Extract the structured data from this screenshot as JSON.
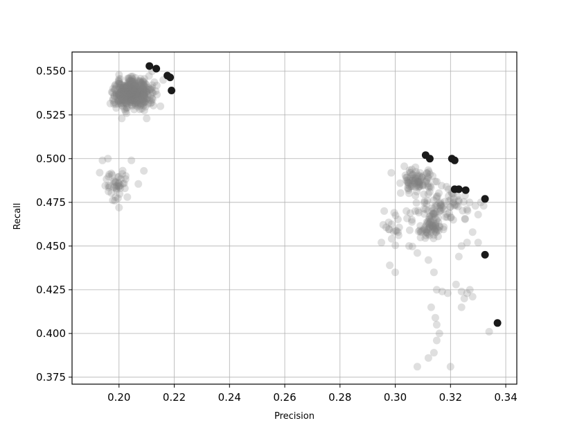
{
  "chart_data": {
    "type": "scatter",
    "title": "",
    "xlabel": "Precision",
    "ylabel": "Recall",
    "xlim": [
      0.183,
      0.344
    ],
    "ylim": [
      0.371,
      0.561
    ],
    "xticks": [
      "0.20",
      "0.22",
      "0.24",
      "0.26",
      "0.28",
      "0.30",
      "0.32",
      "0.34"
    ],
    "yticks": [
      "0.375",
      "0.400",
      "0.425",
      "0.450",
      "0.475",
      "0.500",
      "0.525",
      "0.550"
    ],
    "grid": true,
    "series": [
      {
        "role": "all-points",
        "color": "#808080",
        "opacity": 0.25,
        "clusters": [
          {
            "center": [
              0.205,
              0.5375
            ],
            "spread": [
              0.0045,
              0.0055
            ],
            "n": 520
          },
          {
            "center": [
              0.1995,
              0.485
            ],
            "spread": [
              0.003,
              0.006
            ],
            "n": 40
          },
          {
            "center": [
              0.308,
              0.487
            ],
            "spread": [
              0.0045,
              0.005
            ],
            "n": 90
          },
          {
            "center": [
              0.314,
              0.47
            ],
            "spread": [
              0.004,
              0.007
            ],
            "n": 60
          },
          {
            "center": [
              0.313,
              0.46
            ],
            "spread": [
              0.003,
              0.004
            ],
            "n": 50
          },
          {
            "center": [
              0.322,
              0.475
            ],
            "spread": [
              0.004,
              0.006
            ],
            "n": 30
          },
          {
            "center": [
              0.302,
              0.46
            ],
            "spread": [
              0.004,
              0.008
            ],
            "n": 25
          }
        ],
        "points": [
          [
            0.193,
            0.492
          ],
          [
            0.194,
            0.499
          ],
          [
            0.196,
            0.5
          ],
          [
            0.195,
            0.4845
          ],
          [
            0.2045,
            0.499
          ],
          [
            0.207,
            0.4855
          ],
          [
            0.209,
            0.493
          ],
          [
            0.2,
            0.472
          ],
          [
            0.203,
            0.478
          ],
          [
            0.1985,
            0.476
          ],
          [
            0.201,
            0.523
          ],
          [
            0.199,
            0.529
          ],
          [
            0.21,
            0.523
          ],
          [
            0.215,
            0.53
          ],
          [
            0.216,
            0.545
          ],
          [
            0.212,
            0.55
          ],
          [
            0.2,
            0.548
          ],
          [
            0.295,
            0.452
          ],
          [
            0.296,
            0.47
          ],
          [
            0.298,
            0.439
          ],
          [
            0.3,
            0.435
          ],
          [
            0.301,
            0.458
          ],
          [
            0.305,
            0.45
          ],
          [
            0.308,
            0.446
          ],
          [
            0.306,
            0.465
          ],
          [
            0.312,
            0.442
          ],
          [
            0.314,
            0.435
          ],
          [
            0.315,
            0.425
          ],
          [
            0.313,
            0.415
          ],
          [
            0.3145,
            0.409
          ],
          [
            0.315,
            0.405
          ],
          [
            0.316,
            0.4
          ],
          [
            0.315,
            0.396
          ],
          [
            0.312,
            0.386
          ],
          [
            0.314,
            0.389
          ],
          [
            0.308,
            0.381
          ],
          [
            0.32,
            0.381
          ],
          [
            0.317,
            0.424
          ],
          [
            0.319,
            0.423
          ],
          [
            0.322,
            0.428
          ],
          [
            0.324,
            0.424
          ],
          [
            0.325,
            0.42
          ],
          [
            0.324,
            0.415
          ],
          [
            0.326,
            0.423
          ],
          [
            0.327,
            0.425
          ],
          [
            0.328,
            0.421
          ],
          [
            0.324,
            0.45
          ],
          [
            0.326,
            0.452
          ],
          [
            0.328,
            0.458
          ],
          [
            0.33,
            0.452
          ],
          [
            0.323,
            0.444
          ],
          [
            0.329,
            0.473
          ],
          [
            0.331,
            0.475
          ],
          [
            0.332,
            0.473
          ],
          [
            0.33,
            0.468
          ],
          [
            0.334,
            0.401
          ],
          [
            0.321,
            0.465
          ]
        ]
      },
      {
        "role": "highlighted",
        "color": "#1a1a1a",
        "opacity": 1.0,
        "points": [
          [
            0.211,
            0.553
          ],
          [
            0.2135,
            0.5515
          ],
          [
            0.2175,
            0.5475
          ],
          [
            0.2185,
            0.5465
          ],
          [
            0.219,
            0.539
          ],
          [
            0.311,
            0.502
          ],
          [
            0.3125,
            0.5
          ],
          [
            0.3205,
            0.5
          ],
          [
            0.3215,
            0.499
          ],
          [
            0.3215,
            0.4825
          ],
          [
            0.323,
            0.4825
          ],
          [
            0.3255,
            0.482
          ],
          [
            0.3325,
            0.477
          ],
          [
            0.3325,
            0.445
          ],
          [
            0.337,
            0.406
          ]
        ]
      }
    ]
  }
}
